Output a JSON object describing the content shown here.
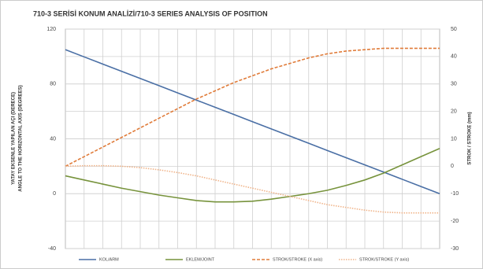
{
  "chart_data": {
    "type": "line",
    "title": "710-3 SERİSİ KONUM ANALİZİ/710-3 SERIES ANALYSIS OF POSITION",
    "y_label": [
      "YATAY EKSENLE YAPILAN AÇI (DERECE)",
      "ANGLE TO THE HORIZONTAL AXIS (DEGREES)"
    ],
    "y2_label": "STROK / STROKE (mm)",
    "categories": [
      null,
      null,
      null,
      null,
      null,
      null,
      null,
      null,
      null,
      null,
      null,
      null,
      null,
      null,
      null,
      null,
      null,
      null,
      null,
      null,
      null
    ],
    "ylim": [
      -40,
      120
    ],
    "yticks": [
      -40,
      0,
      40,
      80,
      120
    ],
    "y2lim": [
      -30,
      50
    ],
    "y2ticks": [
      -30,
      -20,
      -10,
      0,
      10,
      20,
      30,
      40,
      50
    ],
    "grid": true,
    "legend": "bottom",
    "series": [
      {
        "name": "KOL/ARM",
        "color": "#4a6fa5",
        "style": "solid",
        "values": [
          105,
          99.75,
          94.5,
          89.25,
          84,
          78.75,
          73.5,
          68.25,
          63,
          57.75,
          52.5,
          47.25,
          42,
          36.75,
          31.5,
          26.25,
          21,
          15.75,
          10.5,
          5.25,
          0
        ]
      },
      {
        "name": "EKLEM/JOINT",
        "color": "#77933c",
        "style": "solid",
        "values": [
          13,
          10,
          7,
          4,
          1.5,
          -1,
          -3,
          -5,
          -6,
          -6,
          -5.5,
          -4,
          -2,
          0,
          2.5,
          6,
          10,
          15,
          21,
          27,
          33
        ]
      },
      {
        "name": "STROK/STROKE (X axis)",
        "color": "#e07b39",
        "style": "dashed",
        "axis": "y2",
        "values": [
          0,
          3.5,
          7,
          10.5,
          14,
          17.5,
          21,
          24.5,
          27.5,
          30.5,
          33,
          35.5,
          37.5,
          39.5,
          41,
          42,
          42.5,
          43,
          43,
          43,
          43
        ]
      },
      {
        "name": "STROK/STROKE (Y axis)",
        "color": "#f0b48a",
        "style": "dotted",
        "axis": "y2",
        "values": [
          0,
          0.2,
          0.2,
          0,
          -0.5,
          -1.3,
          -2.3,
          -3.5,
          -5,
          -6.5,
          -8,
          -9.5,
          -11,
          -12.5,
          -14,
          -15,
          -16,
          -16.7,
          -17,
          -17,
          -17
        ]
      }
    ]
  }
}
